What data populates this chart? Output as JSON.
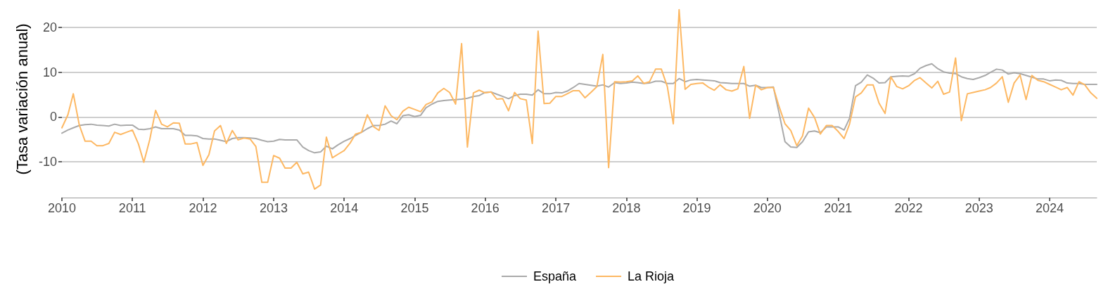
{
  "chart_data": {
    "type": "line",
    "ylabel": "(Tasa variación anual)",
    "x": [
      "2010-01",
      "2010-02",
      "2010-03",
      "2010-04",
      "2010-05",
      "2010-06",
      "2010-07",
      "2010-08",
      "2010-09",
      "2010-10",
      "2010-11",
      "2010-12",
      "2011-01",
      "2011-02",
      "2011-03",
      "2011-04",
      "2011-05",
      "2011-06",
      "2011-07",
      "2011-08",
      "2011-09",
      "2011-10",
      "2011-11",
      "2011-12",
      "2012-01",
      "2012-02",
      "2012-03",
      "2012-04",
      "2012-05",
      "2012-06",
      "2012-07",
      "2012-08",
      "2012-09",
      "2012-10",
      "2012-11",
      "2012-12",
      "2013-01",
      "2013-02",
      "2013-03",
      "2013-04",
      "2013-05",
      "2013-06",
      "2013-07",
      "2013-08",
      "2013-09",
      "2013-10",
      "2013-11",
      "2013-12",
      "2014-01",
      "2014-02",
      "2014-03",
      "2014-04",
      "2014-05",
      "2014-06",
      "2014-07",
      "2014-08",
      "2014-09",
      "2014-10",
      "2014-11",
      "2014-12",
      "2015-01",
      "2015-02",
      "2015-03",
      "2015-04",
      "2015-05",
      "2015-06",
      "2015-07",
      "2015-08",
      "2015-09",
      "2015-10",
      "2015-11",
      "2015-12",
      "2016-01",
      "2016-02",
      "2016-03",
      "2016-04",
      "2016-05",
      "2016-06",
      "2016-07",
      "2016-08",
      "2016-09",
      "2016-10",
      "2016-11",
      "2016-12",
      "2017-01",
      "2017-02",
      "2017-03",
      "2017-04",
      "2017-05",
      "2017-06",
      "2017-07",
      "2017-08",
      "2017-09",
      "2017-10",
      "2017-11",
      "2017-12",
      "2018-01",
      "2018-02",
      "2018-03",
      "2018-04",
      "2018-05",
      "2018-06",
      "2018-07",
      "2018-08",
      "2018-09",
      "2018-10",
      "2018-11",
      "2018-12",
      "2019-01",
      "2019-02",
      "2019-03",
      "2019-04",
      "2019-05",
      "2019-06",
      "2019-07",
      "2019-08",
      "2019-09",
      "2019-10",
      "2019-11",
      "2019-12",
      "2020-01",
      "2020-02",
      "2020-03",
      "2020-04",
      "2020-05",
      "2020-06",
      "2020-07",
      "2020-08",
      "2020-09",
      "2020-10",
      "2020-11",
      "2020-12",
      "2021-01",
      "2021-02",
      "2021-03",
      "2021-04",
      "2021-05",
      "2021-06",
      "2021-07",
      "2021-08",
      "2021-09",
      "2021-10",
      "2021-11",
      "2021-12",
      "2022-01",
      "2022-02",
      "2022-03",
      "2022-04",
      "2022-05",
      "2022-06",
      "2022-07",
      "2022-08",
      "2022-09",
      "2022-10",
      "2022-11",
      "2022-12",
      "2023-01",
      "2023-02",
      "2023-03",
      "2023-04",
      "2023-05",
      "2023-06",
      "2023-07",
      "2023-08",
      "2023-09",
      "2023-10",
      "2023-11",
      "2023-12",
      "2024-01",
      "2024-02",
      "2024-03",
      "2024-04",
      "2024-05",
      "2024-06",
      "2024-07",
      "2024-08",
      "2024-09"
    ],
    "series": [
      {
        "name": "España",
        "color": "#aaaaaa",
        "values": [
          -3.6,
          -2.9,
          -2.4,
          -1.9,
          -1.7,
          -1.6,
          -1.8,
          -1.9,
          -2.0,
          -1.6,
          -1.9,
          -1.8,
          -1.8,
          -2.7,
          -2.8,
          -2.6,
          -2.2,
          -2.6,
          -2.6,
          -2.6,
          -2.9,
          -4.1,
          -4.1,
          -4.2,
          -4.8,
          -4.9,
          -4.9,
          -5.2,
          -5.5,
          -4.8,
          -4.6,
          -4.6,
          -4.7,
          -4.8,
          -5.2,
          -5.5,
          -5.4,
          -5.0,
          -5.1,
          -5.1,
          -5.1,
          -6.7,
          -7.5,
          -8.0,
          -7.8,
          -6.5,
          -7.1,
          -6.2,
          -5.4,
          -4.8,
          -4.1,
          -3.4,
          -2.6,
          -1.9,
          -1.9,
          -1.6,
          -0.9,
          -1.5,
          0.3,
          0.5,
          0.1,
          0.4,
          2.1,
          2.9,
          3.5,
          3.7,
          3.8,
          3.9,
          4.0,
          4.2,
          4.6,
          4.8,
          5.5,
          5.6,
          5.1,
          4.6,
          4.1,
          4.8,
          5.1,
          5.1,
          4.9,
          6.1,
          5.2,
          5.2,
          5.5,
          5.4,
          5.8,
          6.6,
          7.5,
          7.3,
          7.1,
          6.9,
          7.2,
          6.7,
          7.7,
          7.5,
          7.6,
          7.8,
          7.7,
          7.5,
          7.6,
          8.0,
          8.0,
          7.5,
          7.5,
          8.6,
          7.9,
          8.3,
          8.4,
          8.3,
          8.2,
          8.1,
          7.7,
          7.6,
          7.5,
          7.5,
          7.5,
          6.9,
          7.1,
          6.6,
          6.6,
          6.7,
          1.0,
          -5.5,
          -6.7,
          -6.8,
          -5.5,
          -3.3,
          -3.1,
          -3.5,
          -2.2,
          -2.2,
          -2.2,
          -2.9,
          -0.3,
          7.0,
          7.8,
          9.4,
          8.7,
          7.6,
          7.7,
          9.0,
          9.1,
          9.2,
          9.1,
          9.7,
          10.9,
          11.5,
          11.9,
          10.8,
          10.1,
          9.8,
          9.7,
          9.0,
          8.6,
          8.4,
          8.8,
          9.3,
          10.0,
          10.7,
          10.5,
          9.6,
          9.9,
          9.7,
          9.3,
          8.9,
          8.5,
          8.5,
          8.1,
          8.3,
          8.2,
          7.6,
          7.5,
          7.5,
          7.3,
          7.3,
          7.3
        ]
      },
      {
        "name": "La Rioja",
        "color": "#fdb863",
        "values": [
          -2.4,
          0.5,
          5.2,
          -1.8,
          -5.4,
          -5.4,
          -6.4,
          -6.4,
          -5.9,
          -3.4,
          -3.9,
          -3.4,
          -2.9,
          -6.0,
          -10.1,
          -5.0,
          1.5,
          -1.6,
          -2.2,
          -1.3,
          -1.4,
          -6.0,
          -6.0,
          -5.7,
          -10.8,
          -8.4,
          -3.1,
          -1.9,
          -5.9,
          -3.0,
          -5.1,
          -4.7,
          -4.9,
          -6.6,
          -14.6,
          -14.6,
          -8.6,
          -9.2,
          -11.4,
          -11.4,
          -10.1,
          -12.7,
          -12.3,
          -16.1,
          -15.2,
          -4.5,
          -9.1,
          -8.3,
          -7.5,
          -5.8,
          -3.8,
          -3.4,
          0.5,
          -2.1,
          -3.0,
          2.5,
          0.3,
          -0.6,
          1.3,
          2.2,
          1.7,
          1.2,
          2.8,
          3.4,
          5.4,
          6.4,
          5.5,
          2.9,
          16.4,
          -6.7,
          5.4,
          6.0,
          5.4,
          5.6,
          4.0,
          4.1,
          1.4,
          5.5,
          4.1,
          3.8,
          -5.9,
          19.2,
          3.0,
          3.1,
          4.6,
          4.6,
          5.2,
          5.9,
          5.9,
          4.3,
          5.5,
          6.8,
          14.0,
          -11.3,
          7.9,
          7.8,
          7.9,
          8.1,
          9.2,
          7.5,
          7.9,
          10.7,
          10.7,
          6.8,
          -1.5,
          24.0,
          6.2,
          7.3,
          7.5,
          7.6,
          6.7,
          6.0,
          7.2,
          6.1,
          5.8,
          6.3,
          11.3,
          -0.3,
          7.1,
          6.1,
          6.6,
          6.6,
          2.4,
          -1.5,
          -3.0,
          -6.4,
          -4.2,
          2.0,
          -0.1,
          -3.8,
          -1.9,
          -1.9,
          -3.2,
          -4.8,
          -1.6,
          4.5,
          5.4,
          7.2,
          7.2,
          3.1,
          0.8,
          9.0,
          6.8,
          6.3,
          7.0,
          8.2,
          8.8,
          7.6,
          6.5,
          8.0,
          5.1,
          5.6,
          13.2,
          -0.8,
          5.2,
          5.5,
          5.8,
          6.1,
          6.6,
          7.6,
          9.0,
          3.3,
          7.6,
          9.4,
          3.9,
          9.3,
          8.2,
          7.9,
          7.3,
          6.7,
          6.1,
          6.6,
          4.9,
          7.9,
          7.2,
          5.4,
          4.2
        ]
      }
    ],
    "xlim": [
      "2010-01",
      "2024-09"
    ],
    "xticks": [
      "2010",
      "2011",
      "2012",
      "2013",
      "2014",
      "2015",
      "2016",
      "2017",
      "2018",
      "2019",
      "2020",
      "2021",
      "2022",
      "2023",
      "2024"
    ],
    "ylim": [
      -18,
      26
    ],
    "yticks": [
      -10,
      0,
      10,
      20
    ],
    "grid": "y",
    "legend": "bottom",
    "marker": "none",
    "line_style": "solid"
  }
}
